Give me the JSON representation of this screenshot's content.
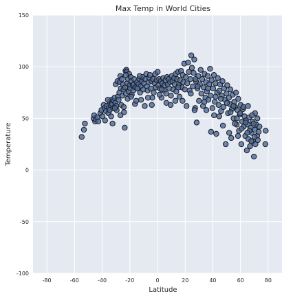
{
  "chart_data": {
    "type": "scatter",
    "title": "Max Temp in World Cities",
    "xlabel": "Latitude",
    "ylabel": "Temperature",
    "xlim": [
      -90,
      90
    ],
    "ylim": [
      -100,
      150
    ],
    "xticks": [
      -80,
      -60,
      -40,
      -20,
      0,
      20,
      40,
      60,
      80
    ],
    "yticks": [
      -100,
      -50,
      0,
      50,
      100,
      150
    ],
    "grid": true,
    "colors": {
      "background": "#e5e9f2",
      "grid": "#ffffff",
      "marker_fill": "#4c6a9c",
      "marker_edge": "#1a1a1a"
    },
    "points": [
      [
        -54.8,
        32
      ],
      [
        -53.2,
        39
      ],
      [
        -52.5,
        45
      ],
      [
        -46.2,
        50
      ],
      [
        -45.8,
        53
      ],
      [
        -45.1,
        47
      ],
      [
        -44.6,
        49
      ],
      [
        -42.8,
        47
      ],
      [
        -41.3,
        55
      ],
      [
        -40.5,
        58
      ],
      [
        -39.8,
        52
      ],
      [
        -38.9,
        63
      ],
      [
        -38.2,
        60
      ],
      [
        -37.9,
        48
      ],
      [
        -37.2,
        57
      ],
      [
        -36.8,
        62
      ],
      [
        -35.5,
        55
      ],
      [
        -35.2,
        60
      ],
      [
        -34.7,
        66
      ],
      [
        -34.5,
        58
      ],
      [
        -33.9,
        63
      ],
      [
        -33.5,
        52
      ],
      [
        -33.1,
        68
      ],
      [
        -32.8,
        64
      ],
      [
        -32.5,
        45
      ],
      [
        -31.9,
        60
      ],
      [
        -31.5,
        67
      ],
      [
        -31.1,
        70
      ],
      [
        -30.5,
        65
      ],
      [
        -30.2,
        83
      ],
      [
        -29.8,
        62
      ],
      [
        -29.5,
        58
      ],
      [
        -28.9,
        86
      ],
      [
        -28.7,
        71
      ],
      [
        -28.1,
        68
      ],
      [
        -27.6,
        75
      ],
      [
        -27.3,
        85
      ],
      [
        -26.9,
        91
      ],
      [
        -26.5,
        79
      ],
      [
        -26.2,
        63
      ],
      [
        -25.8,
        88
      ],
      [
        -25.3,
        72
      ],
      [
        -24.9,
        83
      ],
      [
        -24.6,
        78
      ],
      [
        -24.2,
        56
      ],
      [
        -23.7,
        41
      ],
      [
        -23.5,
        80
      ],
      [
        -23.1,
        96
      ],
      [
        -22.8,
        74
      ],
      [
        -22.5,
        97
      ],
      [
        -22.1,
        95
      ],
      [
        -21.9,
        84
      ],
      [
        -21.6,
        69
      ],
      [
        -21.3,
        88
      ],
      [
        -20.8,
        76
      ],
      [
        -20.5,
        93
      ],
      [
        -20.1,
        82
      ],
      [
        -19.7,
        79
      ],
      [
        -19.3,
        90
      ],
      [
        -18.9,
        86
      ],
      [
        -18.6,
        73
      ],
      [
        -17.9,
        82
      ],
      [
        -17.5,
        77
      ],
      [
        -17.1,
        83
      ],
      [
        -16.8,
        88
      ],
      [
        -16.3,
        64
      ],
      [
        -15.9,
        80
      ],
      [
        -15.4,
        67
      ],
      [
        -14.8,
        85
      ],
      [
        -14.2,
        79
      ],
      [
        -13.7,
        83
      ],
      [
        -13.1,
        88
      ],
      [
        -12.6,
        75
      ],
      [
        -12.1,
        81
      ],
      [
        -11.5,
        86
      ],
      [
        -10.9,
        90
      ],
      [
        -10.3,
        78
      ],
      [
        -9.8,
        84
      ],
      [
        -9.2,
        62
      ],
      [
        -8.7,
        88
      ],
      [
        -8.1,
        93
      ],
      [
        -7.6,
        81
      ],
      [
        -7.1,
        77
      ],
      [
        -6.5,
        85
      ],
      [
        -5.9,
        89
      ],
      [
        -5.4,
        92
      ],
      [
        -4.8,
        79
      ],
      [
        -4.3,
        86
      ],
      [
        -3.8,
        70
      ],
      [
        -3.2,
        88
      ],
      [
        -2.7,
        75
      ],
      [
        -2.1,
        84
      ],
      [
        -1.6,
        93
      ],
      [
        -1.1,
        80
      ],
      [
        -0.6,
        87
      ],
      [
        0.1,
        95
      ],
      [
        0.6,
        82
      ],
      [
        1.2,
        88
      ],
      [
        1.8,
        79
      ],
      [
        2.4,
        86
      ],
      [
        2.9,
        70
      ],
      [
        3.5,
        84
      ],
      [
        4.1,
        89
      ],
      [
        4.7,
        77
      ],
      [
        5.2,
        82
      ],
      [
        5.8,
        87
      ],
      [
        6.3,
        74
      ],
      [
        6.9,
        90
      ],
      [
        7.4,
        83
      ],
      [
        8.0,
        88
      ],
      [
        8.6,
        79
      ],
      [
        9.1,
        85
      ],
      [
        9.7,
        72
      ],
      [
        10.3,
        91
      ],
      [
        10.8,
        86
      ],
      [
        11.4,
        78
      ],
      [
        12.0,
        89
      ],
      [
        12.5,
        83
      ],
      [
        13.1,
        93
      ],
      [
        13.6,
        76
      ],
      [
        14.2,
        88
      ],
      [
        14.8,
        95
      ],
      [
        15.3,
        82
      ],
      [
        15.9,
        71
      ],
      [
        16.5,
        87
      ],
      [
        17.0,
        96
      ],
      [
        17.6,
        80
      ],
      [
        18.2,
        92
      ],
      [
        18.7,
        85
      ],
      [
        19.3,
        103
      ],
      [
        19.8,
        78
      ],
      [
        20.4,
        90
      ],
      [
        21.0,
        62
      ],
      [
        21.5,
        84
      ],
      [
        22.1,
        104
      ],
      [
        22.7,
        95
      ],
      [
        23.2,
        77
      ],
      [
        23.8,
        88
      ],
      [
        24.4,
        111
      ],
      [
        24.9,
        99
      ],
      [
        25.5,
        81
      ],
      [
        26.1,
        94
      ],
      [
        26.6,
        107
      ],
      [
        27.2,
        60
      ],
      [
        27.8,
        86
      ],
      [
        28.3,
        46
      ],
      [
        28.9,
        79
      ],
      [
        29.5,
        91
      ],
      [
        30.0,
        67
      ],
      [
        30.6,
        83
      ],
      [
        31.2,
        97
      ],
      [
        31.7,
        74
      ],
      [
        32.3,
        88
      ],
      [
        32.9,
        62
      ],
      [
        33.4,
        80
      ],
      [
        34.0,
        93
      ],
      [
        34.6,
        70
      ],
      [
        35.1,
        85
      ],
      [
        35.7,
        76
      ],
      [
        36.3,
        91
      ],
      [
        36.8,
        68
      ],
      [
        37.4,
        83
      ],
      [
        38.0,
        98
      ],
      [
        38.5,
        72
      ],
      [
        39.1,
        87
      ],
      [
        39.7,
        60
      ],
      [
        40.2,
        79
      ],
      [
        40.8,
        92
      ],
      [
        41.4,
        66
      ],
      [
        41.9,
        84
      ],
      [
        42.5,
        35
      ],
      [
        43.1,
        75
      ],
      [
        43.6,
        89
      ],
      [
        44.2,
        63
      ],
      [
        44.8,
        77
      ],
      [
        45.3,
        83
      ],
      [
        45.9,
        57
      ],
      [
        46.5,
        72
      ],
      [
        47.0,
        86
      ],
      [
        47.6,
        61
      ],
      [
        48.2,
        79
      ],
      [
        48.7,
        68
      ],
      [
        49.3,
        25
      ],
      [
        49.9,
        74
      ],
      [
        50.4,
        82
      ],
      [
        51.0,
        55
      ],
      [
        51.6,
        70
      ],
      [
        52.1,
        64
      ],
      [
        52.7,
        78
      ],
      [
        53.3,
        31
      ],
      [
        53.8,
        59
      ],
      [
        54.4,
        73
      ],
      [
        55.0,
        50
      ],
      [
        55.5,
        66
      ],
      [
        56.1,
        61
      ],
      [
        56.7,
        75
      ],
      [
        57.2,
        44
      ],
      [
        57.8,
        58
      ],
      [
        58.4,
        69
      ],
      [
        58.9,
        38
      ],
      [
        59.5,
        54
      ],
      [
        60.1,
        63
      ],
      [
        60.6,
        25
      ],
      [
        61.2,
        47
      ],
      [
        61.8,
        59
      ],
      [
        62.3,
        42
      ],
      [
        62.9,
        52
      ],
      [
        63.5,
        33
      ],
      [
        64.0,
        48
      ],
      [
        64.6,
        19
      ],
      [
        65.2,
        44
      ],
      [
        65.7,
        30
      ],
      [
        66.3,
        51
      ],
      [
        66.9,
        23
      ],
      [
        67.4,
        41
      ],
      [
        68.0,
        36
      ],
      [
        68.6,
        47
      ],
      [
        69.1,
        28
      ],
      [
        69.7,
        13
      ],
      [
        70.3,
        39
      ],
      [
        70.8,
        25
      ],
      [
        71.4,
        44
      ],
      [
        72.0,
        33
      ],
      [
        72.5,
        29
      ],
      [
        73.1,
        37
      ],
      [
        73.7,
        42
      ],
      [
        78.2,
        38
      ],
      [
        78.0,
        25
      ],
      [
        70.5,
        55
      ],
      [
        72.2,
        50
      ],
      [
        -35.9,
        68
      ],
      [
        -30.8,
        60
      ],
      [
        -22.9,
        92
      ],
      [
        -19.1,
        71
      ],
      [
        -12.9,
        91
      ],
      [
        -4.1,
        63
      ],
      [
        6.4,
        65
      ],
      [
        12.9,
        67
      ],
      [
        18.1,
        67
      ],
      [
        26.8,
        58
      ],
      [
        33.9,
        66
      ],
      [
        40.9,
        53
      ],
      [
        47.3,
        43
      ],
      [
        51.8,
        36
      ],
      [
        58.2,
        33
      ],
      [
        62.1,
        61
      ],
      [
        65.4,
        62
      ],
      [
        68.3,
        53
      ],
      [
        38.7,
        37
      ],
      [
        -43.5,
        51
      ],
      [
        -26.8,
        53
      ],
      [
        -11.9,
        68
      ],
      [
        1.5,
        73
      ],
      [
        9.5,
        63
      ],
      [
        24.1,
        74
      ],
      [
        35.3,
        58
      ],
      [
        44.6,
        52
      ],
      [
        55.9,
        45
      ],
      [
        60.8,
        40
      ],
      [
        66.5,
        38
      ],
      [
        70.1,
        32
      ],
      [
        -24.4,
        61
      ],
      [
        -14.6,
        79
      ],
      [
        -6.9,
        70
      ],
      [
        3.0,
        78
      ],
      [
        15.1,
        80
      ],
      [
        27.5,
        88
      ],
      [
        36.5,
        79
      ],
      [
        45.8,
        69
      ],
      [
        52.8,
        56
      ],
      [
        57.4,
        50
      ],
      [
        63.7,
        46
      ],
      [
        67.8,
        28
      ],
      [
        29.1,
        81
      ],
      [
        42.0,
        71
      ],
      [
        50.2,
        65
      ],
      [
        54.9,
        62
      ],
      [
        59.8,
        55
      ],
      [
        64.9,
        36
      ],
      [
        69.5,
        45
      ]
    ]
  }
}
